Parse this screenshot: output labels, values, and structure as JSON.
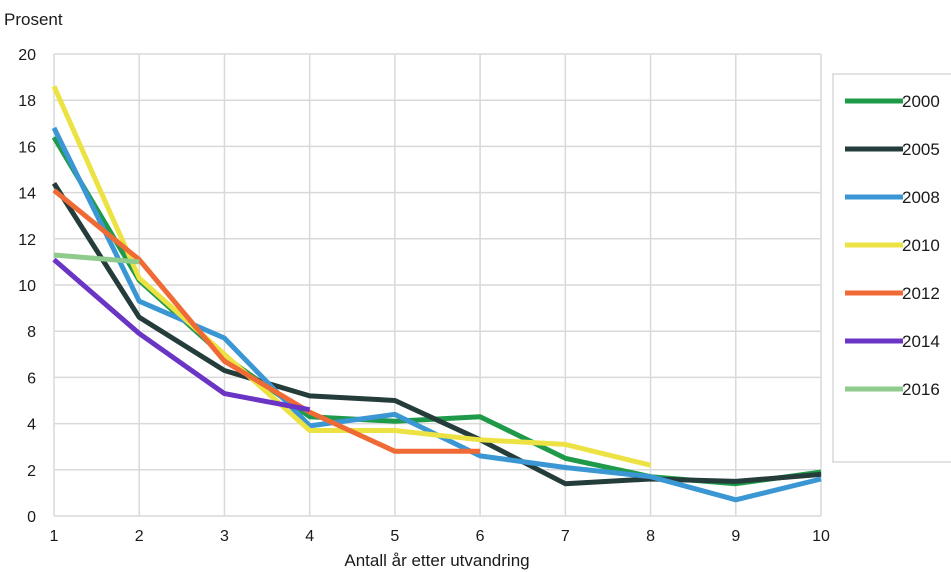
{
  "chart_data": {
    "type": "line",
    "ylabel": "Prosent",
    "xlabel": "Antall år etter utvandring",
    "ylim": [
      0,
      20
    ],
    "xlim": [
      1,
      10
    ],
    "yticks": [
      "0",
      "2",
      "4",
      "6",
      "8",
      "10",
      "12",
      "14",
      "16",
      "18",
      "20"
    ],
    "xticks": [
      "1",
      "2",
      "3",
      "4",
      "5",
      "6",
      "7",
      "8",
      "9",
      "10"
    ],
    "grid": true,
    "legend_position": "right",
    "series": [
      {
        "name": "2000",
        "color": "#1e9a4a",
        "x": [
          1,
          2,
          3,
          4,
          5,
          6,
          7,
          8,
          9,
          10
        ],
        "values": [
          16.4,
          10.2,
          6.9,
          4.3,
          4.1,
          4.3,
          2.5,
          1.7,
          1.4,
          1.9
        ]
      },
      {
        "name": "2005",
        "color": "#243c3a",
        "x": [
          1,
          2,
          3,
          4,
          5,
          6,
          7,
          8,
          9,
          10
        ],
        "values": [
          14.4,
          8.6,
          6.3,
          5.2,
          5.0,
          3.3,
          1.4,
          1.6,
          1.5,
          1.8
        ]
      },
      {
        "name": "2008",
        "color": "#3a97d4",
        "x": [
          1,
          2,
          3,
          4,
          5,
          6,
          7,
          8,
          9,
          10
        ],
        "values": [
          16.8,
          9.3,
          7.7,
          3.9,
          4.4,
          2.6,
          2.1,
          1.7,
          0.7,
          1.6
        ]
      },
      {
        "name": "2010",
        "color": "#ede244",
        "x": [
          1,
          2,
          3,
          4,
          5,
          6,
          7,
          8
        ],
        "values": [
          18.6,
          10.3,
          7.0,
          3.7,
          3.7,
          3.3,
          3.1,
          2.2
        ]
      },
      {
        "name": "2012",
        "color": "#ef6a35",
        "x": [
          1,
          2,
          3,
          4,
          5,
          6
        ],
        "values": [
          14.1,
          11.1,
          6.7,
          4.5,
          2.8,
          2.8
        ]
      },
      {
        "name": "2014",
        "color": "#6a34c4",
        "x": [
          1,
          2,
          3,
          4
        ],
        "values": [
          11.1,
          7.9,
          5.3,
          4.6
        ]
      },
      {
        "name": "2016",
        "color": "#8fcb8c",
        "x": [
          1,
          2
        ],
        "values": [
          11.3,
          11.0
        ]
      }
    ]
  }
}
